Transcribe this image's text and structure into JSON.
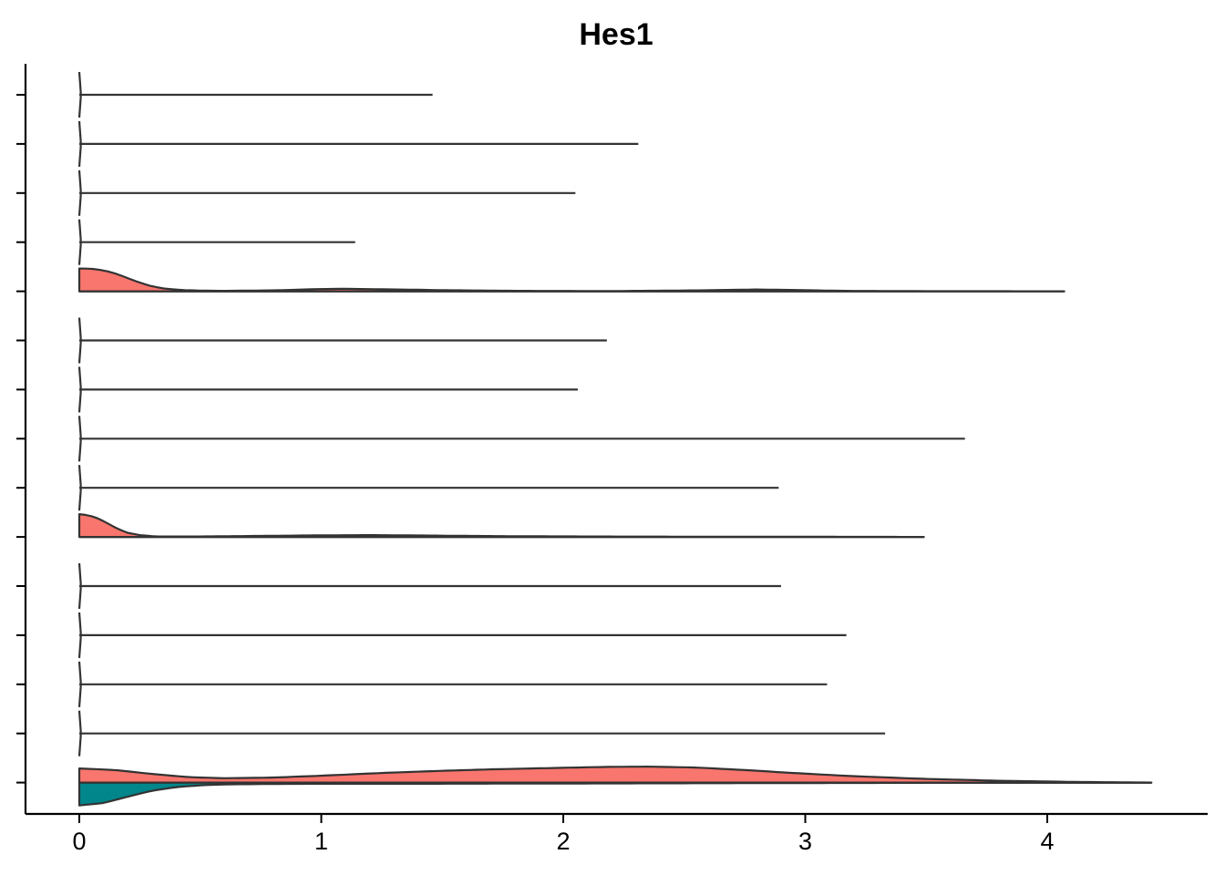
{
  "chart_data": {
    "type": "violin",
    "title": "Hes1",
    "xlabel": "",
    "ylabel": "",
    "xlim": [
      -0.22,
      4.65
    ],
    "x_ticks": [
      0,
      1,
      2,
      3,
      4
    ],
    "x_tick_labels": [
      "0",
      "1",
      "2",
      "3",
      "4"
    ],
    "y_tick_labels_shown": false,
    "orientation": "horizontal",
    "grid": false,
    "legend": "none",
    "colors": {
      "group_a": "#F8766D",
      "group_b": "#00868B",
      "outline": "#333333",
      "axis": "#000000"
    },
    "rows": [
      {
        "max": 1.46,
        "upper_density": [],
        "lower_density": []
      },
      {
        "max": 2.31,
        "upper_density": [],
        "lower_density": []
      },
      {
        "max": 2.05,
        "upper_density": [],
        "lower_density": []
      },
      {
        "max": 1.14,
        "upper_density": [],
        "lower_density": []
      },
      {
        "max": 4.07,
        "upper_density": [
          [
            0,
            1
          ],
          [
            0.05,
            0.99
          ],
          [
            0.1,
            0.92
          ],
          [
            0.15,
            0.78
          ],
          [
            0.2,
            0.58
          ],
          [
            0.25,
            0.38
          ],
          [
            0.3,
            0.22
          ],
          [
            0.35,
            0.12
          ],
          [
            0.42,
            0.06
          ],
          [
            0.5,
            0.03
          ],
          [
            0.6,
            0.02
          ],
          [
            0.8,
            0.04
          ],
          [
            1.0,
            0.1
          ],
          [
            1.1,
            0.11
          ],
          [
            1.25,
            0.09
          ],
          [
            1.5,
            0.05
          ],
          [
            1.8,
            0.02
          ],
          [
            2.2,
            0.01
          ],
          [
            2.55,
            0.04
          ],
          [
            2.8,
            0.08
          ],
          [
            2.95,
            0.06
          ],
          [
            3.15,
            0.02
          ],
          [
            3.5,
            0.005
          ],
          [
            4.07,
            0
          ]
        ],
        "lower_density": []
      },
      {
        "max": 2.18,
        "upper_density": [],
        "lower_density": []
      },
      {
        "max": 2.06,
        "upper_density": [],
        "lower_density": []
      },
      {
        "max": 3.66,
        "upper_density": [],
        "lower_density": []
      },
      {
        "max": 2.89,
        "upper_density": [],
        "lower_density": []
      },
      {
        "max": 3.49,
        "upper_density": [
          [
            0,
            1
          ],
          [
            0.04,
            0.95
          ],
          [
            0.08,
            0.8
          ],
          [
            0.12,
            0.58
          ],
          [
            0.16,
            0.35
          ],
          [
            0.2,
            0.18
          ],
          [
            0.25,
            0.08
          ],
          [
            0.32,
            0.02
          ],
          [
            0.5,
            0.02
          ],
          [
            0.8,
            0.05
          ],
          [
            1.0,
            0.07
          ],
          [
            1.2,
            0.08
          ],
          [
            1.45,
            0.06
          ],
          [
            1.8,
            0.03
          ],
          [
            2.3,
            0.015
          ],
          [
            2.9,
            0.01
          ],
          [
            3.49,
            0
          ]
        ],
        "lower_density": []
      },
      {
        "max": 2.9,
        "upper_density": [],
        "lower_density": []
      },
      {
        "max": 3.17,
        "upper_density": [],
        "lower_density": []
      },
      {
        "max": 3.09,
        "upper_density": [],
        "lower_density": []
      },
      {
        "max": 3.33,
        "upper_density": [],
        "lower_density": []
      },
      {
        "max": 4.43,
        "upper_density": [
          [
            0,
            0.62
          ],
          [
            0.15,
            0.55
          ],
          [
            0.3,
            0.38
          ],
          [
            0.45,
            0.24
          ],
          [
            0.6,
            0.19
          ],
          [
            0.8,
            0.22
          ],
          [
            1.0,
            0.3
          ],
          [
            1.2,
            0.4
          ],
          [
            1.45,
            0.5
          ],
          [
            1.7,
            0.58
          ],
          [
            2.0,
            0.65
          ],
          [
            2.2,
            0.69
          ],
          [
            2.35,
            0.7
          ],
          [
            2.55,
            0.66
          ],
          [
            2.75,
            0.55
          ],
          [
            2.95,
            0.42
          ],
          [
            3.2,
            0.28
          ],
          [
            3.5,
            0.16
          ],
          [
            3.8,
            0.08
          ],
          [
            4.1,
            0.03
          ],
          [
            4.43,
            0
          ]
        ],
        "lower_density": [
          [
            0,
            1
          ],
          [
            0.1,
            0.9
          ],
          [
            0.2,
            0.62
          ],
          [
            0.3,
            0.36
          ],
          [
            0.4,
            0.2
          ],
          [
            0.5,
            0.12
          ],
          [
            0.6,
            0.08
          ],
          [
            0.8,
            0.06
          ],
          [
            1.0,
            0.05
          ],
          [
            1.5,
            0.05
          ],
          [
            2.0,
            0.04
          ],
          [
            2.5,
            0.03
          ],
          [
            3.0,
            0.02
          ],
          [
            3.5,
            0.01
          ],
          [
            4.0,
            0.005
          ],
          [
            4.43,
            0
          ]
        ]
      }
    ]
  }
}
